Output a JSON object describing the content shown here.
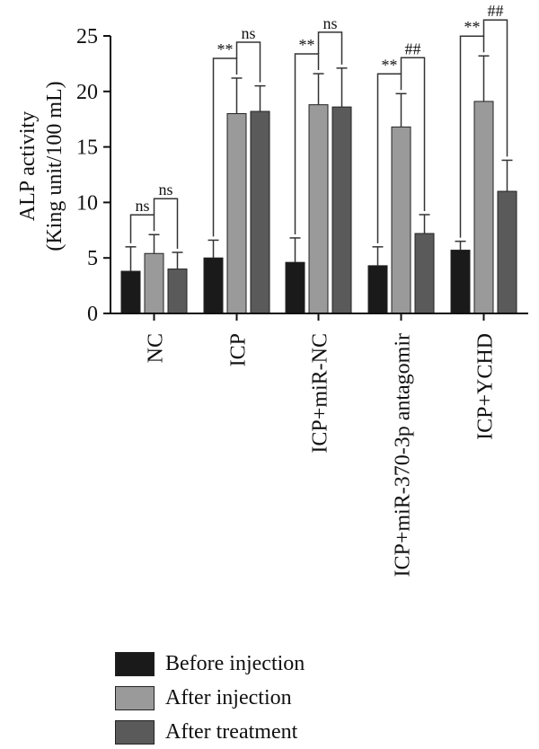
{
  "chart_data": {
    "type": "bar",
    "ylabel_line1": "ALP activity",
    "ylabel_line2": "(King unit/100 mL)",
    "ylim": [
      0,
      25
    ],
    "yticks": [
      "0",
      "5",
      "10",
      "15",
      "20",
      "25"
    ],
    "categories": [
      "NC",
      "ICP",
      "ICP+miR-NC",
      "ICP+miR-370-3p antagomir",
      "ICP+YCHD"
    ],
    "series": [
      {
        "name": "Before injection",
        "color": "#1a1a1a",
        "values": [
          3.8,
          5.0,
          4.6,
          4.3,
          5.7
        ],
        "errors": [
          2.2,
          1.6,
          2.2,
          1.7,
          0.8
        ]
      },
      {
        "name": "After injection",
        "color": "#9a9a9a",
        "values": [
          5.4,
          18.0,
          18.8,
          16.8,
          19.1
        ],
        "errors": [
          1.7,
          3.2,
          2.8,
          3.0,
          4.1
        ]
      },
      {
        "name": "After treatment",
        "color": "#5a5a5a",
        "values": [
          4.0,
          18.2,
          18.6,
          7.2,
          11.0
        ],
        "errors": [
          1.5,
          2.3,
          3.5,
          1.7,
          2.8
        ]
      }
    ],
    "annotations": [
      {
        "group": 0,
        "left": "ns",
        "right": "ns"
      },
      {
        "group": 1,
        "left": "**",
        "right": "ns"
      },
      {
        "group": 2,
        "left": "**",
        "right": "ns"
      },
      {
        "group": 3,
        "left": "**",
        "right": "##"
      },
      {
        "group": 4,
        "left": "**",
        "right": "##"
      }
    ],
    "legend_position": "bottom-left"
  }
}
